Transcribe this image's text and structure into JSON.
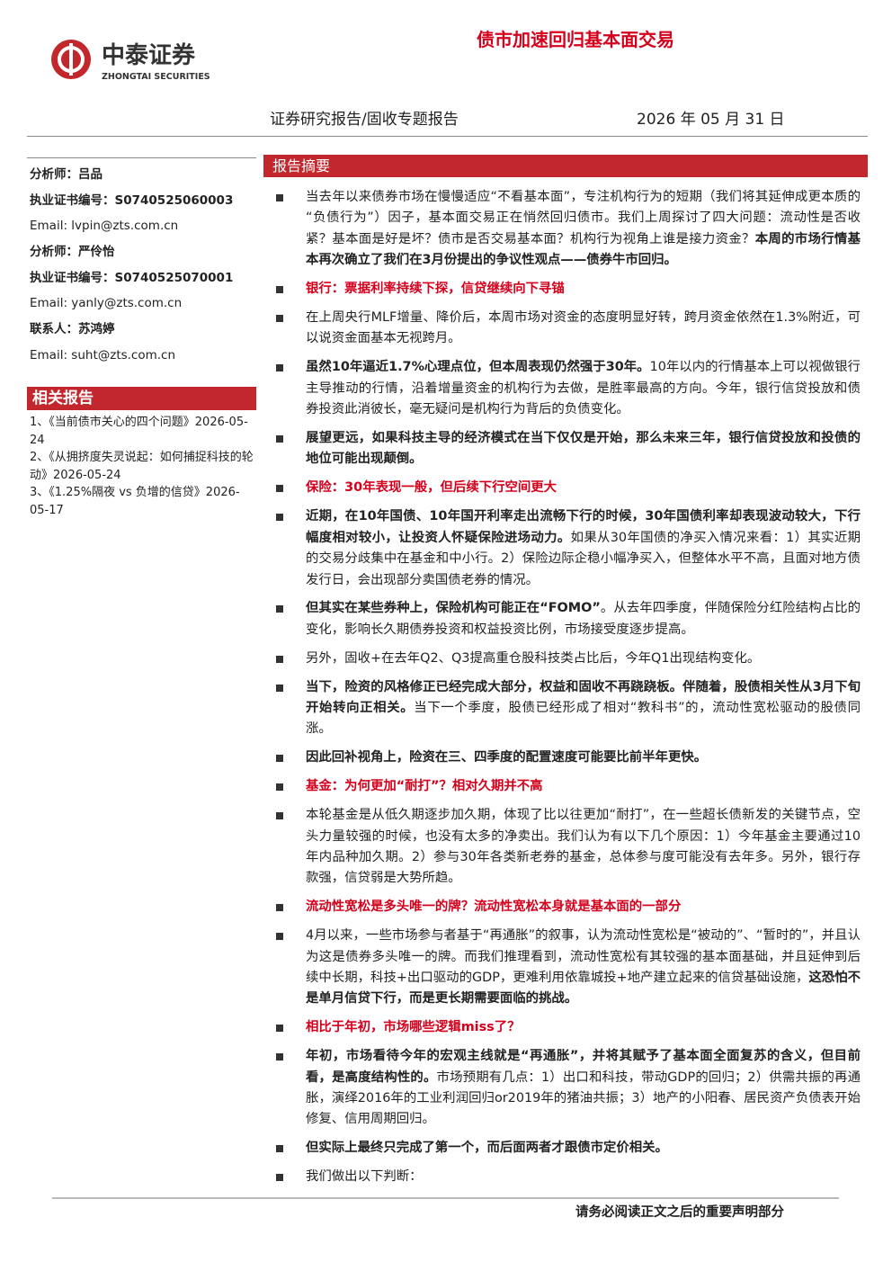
{
  "header": {
    "brand": "中泰证券",
    "brand_en": "ZHONGTAI SECURITIES",
    "title": "债市加速回归基本面交易",
    "report_type": "证券研究报告/固收专题报告",
    "date": "2026 年 05 月 31 日"
  },
  "sidebar": {
    "contacts": [
      {
        "text": "分析师：吕品",
        "bold": true
      },
      {
        "text": "执业证书编号：S0740525060003",
        "bold": true
      },
      {
        "text": "Email:  lvpin@zts.com.cn",
        "bold": false
      },
      {
        "text": "分析师：严伶怡",
        "bold": true
      },
      {
        "text": "执业证书编号：S0740525070001",
        "bold": true
      },
      {
        "text": "Email:  yanly@zts.com.cn",
        "bold": false
      },
      {
        "text": "联系人：苏鸿婷",
        "bold": true
      },
      {
        "text": "Email:  suht@zts.com.cn",
        "bold": false
      }
    ],
    "related_heading": "相关报告",
    "related": [
      "1、《当前债市关心的四个问题》2026-05-24",
      "2、《从拥挤度失灵说起：如何捕捉科技的轮动》2026-05-24",
      "3、《1.25%隔夜 vs 负增的信贷》2026-05-17"
    ]
  },
  "summary": {
    "heading": "报告摘要",
    "paragraphs": [
      {
        "style": "body",
        "runs": [
          {
            "text": "当去年以来债券市场在慢慢适应“不看基本面”，专注机构行为的短期（我们将其延伸成更本质的“负债行为”）因子，基本面交易正在悄然回归债市。我们上周探讨了四大问题：流动性是否收紧？基本面是好是坏？债市是否交易基本面？机构行为视角上谁是接力资金？",
            "bold": false
          },
          {
            "text": "本周的市场行情基本再次确立了我们在3月份提出的争议性观点——债券牛市回归。",
            "bold": true
          }
        ]
      },
      {
        "style": "heading",
        "runs": [
          {
            "text": "银行：票据利率持续下探，信贷继续向下寻锚",
            "bold": true
          }
        ]
      },
      {
        "style": "body",
        "runs": [
          {
            "text": "在上周央行MLF增量、降价后，本周市场对资金的态度明显好转，跨月资金依然在1.3%附近，可以说资金面基本无视跨月。",
            "bold": false
          }
        ]
      },
      {
        "style": "body",
        "runs": [
          {
            "text": "虽然10年逼近1.7%心理点位，但本周表现仍然强于30年。",
            "bold": true
          },
          {
            "text": "10年以内的行情基本上可以视做银行主导推动的行情，沿着增量资金的机构行为去做，是胜率最高的方向。今年，银行信贷投放和债券投资此消彼长，毫无疑问是机构行为背后的负债变化。",
            "bold": false
          }
        ]
      },
      {
        "style": "body",
        "runs": [
          {
            "text": "展望更远，如果科技主导的经济模式在当下仅仅是开始，那么未来三年，银行信贷投放和投债的地位可能出现颠倒。",
            "bold": true
          }
        ]
      },
      {
        "style": "heading",
        "runs": [
          {
            "text": "保险：30年表现一般，但后续下行空间更大",
            "bold": true
          }
        ]
      },
      {
        "style": "body",
        "runs": [
          {
            "text": "近期，在10年国债、10年国开利率走出流畅下行的时候，30年国债利率却表现波动较大，下行幅度相对较小，让投资人怀疑保险进场动力。",
            "bold": true
          },
          {
            "text": "如果从30年国债的净买入情况来看：1）其实近期的交易分歧集中在基金和中小行。2）保险边际企稳小幅净买入，但整体水平不高，且面对地方债发行日，会出现部分卖国债老券的情况。",
            "bold": false
          }
        ]
      },
      {
        "style": "body",
        "runs": [
          {
            "text": "但其实在某些券种上，保险机构可能正在“FOMO”",
            "bold": true
          },
          {
            "text": "。从去年四季度，伴随保险分红险结构占比的变化，影响长久期债券投资和权益投资比例，市场接受度逐步提高。",
            "bold": false
          }
        ]
      },
      {
        "style": "body",
        "runs": [
          {
            "text": "另外，固收+在去年Q2、Q3提高重仓股科技类占比后，今年Q1出现结构变化。",
            "bold": false
          }
        ]
      },
      {
        "style": "body",
        "runs": [
          {
            "text": "当下，险资的风格修正已经完成大部分，权益和固收不再跷跷板。伴随着，股债相关性从3月下旬开始转向正相关。",
            "bold": true
          },
          {
            "text": "当下一个季度，股债已经形成了相对“教科书”的，流动性宽松驱动的股债同涨。",
            "bold": false
          }
        ]
      },
      {
        "style": "body",
        "runs": [
          {
            "text": "因此回补视角上，险资在三、四季度的配置速度可能要比前半年更快。",
            "bold": true
          }
        ]
      },
      {
        "style": "heading",
        "runs": [
          {
            "text": "基金：为何更加“耐打”？相对久期并不高",
            "bold": true
          }
        ]
      },
      {
        "style": "body",
        "runs": [
          {
            "text": "本轮基金是从低久期逐步加久期，体现了比以往更加“耐打”，在一些超长债新发的关键节点，空头力量较强的时候，也没有太多的净卖出。我们认为有以下几个原因：1）今年基金主要通过10年内品种加久期。2）参与30年各类新老券的基金，总体参与度可能没有去年多。另外，银行存款强，信贷弱是大势所趋。",
            "bold": false
          }
        ]
      },
      {
        "style": "heading",
        "runs": [
          {
            "text": "流动性宽松是多头唯一的牌？流动性宽松本身就是基本面的一部分",
            "bold": true
          }
        ]
      },
      {
        "style": "body",
        "runs": [
          {
            "text": "4月以来，一些市场参与者基于“再通胀”的叙事，认为流动性宽松是“被动的”、“暂时的”，并且认为这是债券多头唯一的牌。而我们推理看到，流动性宽松有其较强的基本面基础，并且延伸到后续中长期，科技+出口驱动的GDP，更难利用依靠城投+地产建立起来的信贷基础设施，",
            "bold": false
          },
          {
            "text": "这恐怕不是单月信贷下行，而是更长期需要面临的挑战。",
            "bold": true
          }
        ]
      },
      {
        "style": "heading",
        "runs": [
          {
            "text": "相比于年初，市场哪些逻辑miss了？",
            "bold": true
          }
        ]
      },
      {
        "style": "body",
        "runs": [
          {
            "text": "年初，市场看待今年的宏观主线就是“再通胀”，并将其赋予了基本面全面复苏的含义，但目前看，是高度结构性的。",
            "bold": true
          },
          {
            "text": "市场预期有几点：1）出口和科技，带动GDP的回归；2）供需共振的再通胀，演绎2016年的工业利润回归or2019年的猪油共振；3）地产的小阳春、居民资产负债表开始修复、信用周期回归。",
            "bold": false
          }
        ]
      },
      {
        "style": "body",
        "runs": [
          {
            "text": "但实际上最终只完成了第一个，而后面两者才跟债市定价相关。",
            "bold": true
          }
        ]
      },
      {
        "style": "body",
        "runs": [
          {
            "text": "我们做出以下判断：",
            "bold": false
          }
        ]
      }
    ]
  },
  "footer": {
    "disclaimer": "请务必阅读正文之后的重要声明部分"
  }
}
